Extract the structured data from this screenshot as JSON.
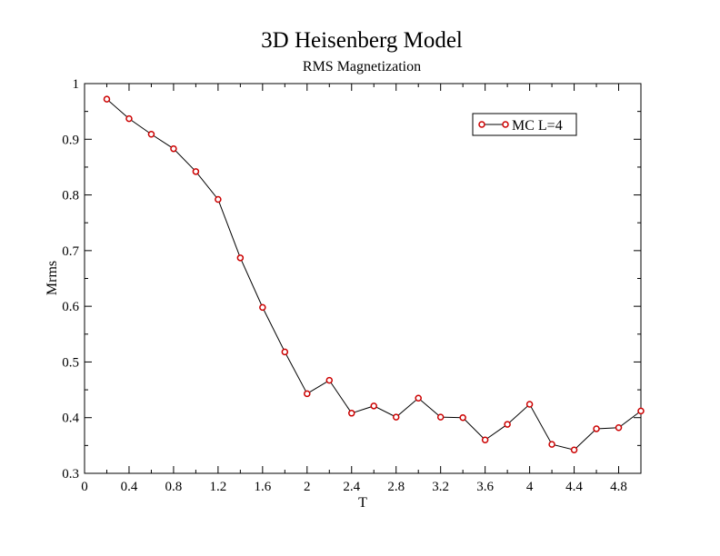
{
  "chart_data": {
    "type": "line",
    "title": "3D Heisenberg Model",
    "subtitle": "RMS Magnetization",
    "xlabel": "T",
    "ylabel": "Mrms",
    "xlim": [
      0,
      5
    ],
    "ylim": [
      0.3,
      1
    ],
    "x_ticks": [
      "0",
      "0.4",
      "0.8",
      "1.2",
      "1.6",
      "2",
      "2.4",
      "2.8",
      "3.2",
      "3.6",
      "4",
      "4.4",
      "4.8"
    ],
    "y_ticks": [
      "0.3",
      "0.4",
      "0.5",
      "0.6",
      "0.7",
      "0.8",
      "0.9",
      "1"
    ],
    "grid": false,
    "legend_position": "top-right",
    "series": [
      {
        "name": "MC L=4",
        "line_color": "#000000",
        "marker_color": "#cc0000",
        "marker": "circle",
        "x": [
          0.2,
          0.4,
          0.6,
          0.8,
          1.0,
          1.2,
          1.4,
          1.6,
          1.8,
          2.0,
          2.2,
          2.4,
          2.6,
          2.8,
          3.0,
          3.2,
          3.4,
          3.6,
          3.8,
          4.0,
          4.2,
          4.4,
          4.6,
          4.8,
          5.0
        ],
        "y": [
          0.972,
          0.937,
          0.909,
          0.883,
          0.842,
          0.792,
          0.687,
          0.598,
          0.518,
          0.443,
          0.467,
          0.408,
          0.421,
          0.401,
          0.435,
          0.401,
          0.4,
          0.36,
          0.388,
          0.424,
          0.352,
          0.342,
          0.38,
          0.382,
          0.412
        ]
      }
    ]
  }
}
